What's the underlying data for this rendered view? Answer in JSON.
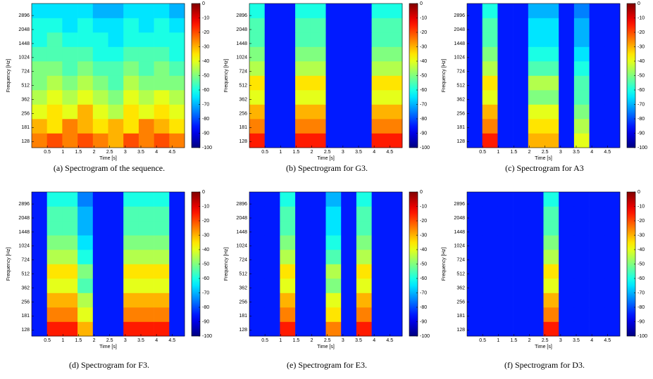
{
  "chart_data": [
    {
      "type": "heatmap",
      "caption": "(a) Spectrogram of the sequence.",
      "xlabel": "Time [s]",
      "ylabel": "Frequency [Hz]",
      "xlim": [
        0,
        4.9
      ],
      "xticks": [
        0.5,
        1,
        1.5,
        2,
        2.5,
        3,
        3.5,
        4,
        4.5
      ],
      "ylim": [
        110,
        3900
      ],
      "yscale": "log",
      "yticks": [
        128,
        181,
        256,
        362,
        512,
        724,
        1024,
        1448,
        2048,
        2896
      ],
      "clim": [
        -100,
        0
      ],
      "cticks": [
        0,
        -10,
        -20,
        -30,
        -40,
        -50,
        -60,
        -70,
        -80,
        -90,
        -100
      ],
      "colormap": "jet",
      "z": [
        [
          -25,
          -20,
          -25,
          -20,
          -25,
          -30,
          -20,
          -25,
          -20,
          -25
        ],
        [
          -30,
          -35,
          -25,
          -30,
          -35,
          -30,
          -35,
          -25,
          -30,
          -35
        ],
        [
          -40,
          -35,
          -40,
          -30,
          -40,
          -45,
          -35,
          -40,
          -35,
          -40
        ],
        [
          -45,
          -40,
          -45,
          -40,
          -45,
          -50,
          -40,
          -45,
          -40,
          -45
        ],
        [
          -50,
          -45,
          -50,
          -45,
          -50,
          -55,
          -45,
          -50,
          -50,
          -50
        ],
        [
          -50,
          -50,
          -55,
          -50,
          -55,
          -55,
          -50,
          -55,
          -50,
          -55
        ],
        [
          -55,
          -55,
          -55,
          -55,
          -60,
          -60,
          -55,
          -55,
          -55,
          -60
        ],
        [
          -60,
          -55,
          -60,
          -60,
          -60,
          -65,
          -60,
          -60,
          -60,
          -60
        ],
        [
          -60,
          -60,
          -65,
          -60,
          -65,
          -65,
          -60,
          -65,
          -60,
          -65
        ],
        [
          -65,
          -65,
          -65,
          -65,
          -70,
          -70,
          -65,
          -65,
          -65,
          -70
        ]
      ]
    },
    {
      "type": "heatmap",
      "caption": "(b) Spectrogram for G3.",
      "xlabel": "Time [s]",
      "ylabel": "Frequency [Hz]",
      "xlim": [
        0,
        4.9
      ],
      "xticks": [
        0.5,
        1,
        1.5,
        2,
        2.5,
        3,
        3.5,
        4,
        4.5
      ],
      "ylim": [
        110,
        3900
      ],
      "yscale": "log",
      "yticks": [
        128,
        181,
        256,
        362,
        512,
        724,
        1024,
        1448,
        2048,
        2896
      ],
      "clim": [
        -100,
        0
      ],
      "cticks": [
        0,
        -10,
        -20,
        -30,
        -40,
        -50,
        -60,
        -70,
        -80,
        -90,
        -100
      ],
      "colormap": "jet",
      "z": [
        [
          -15,
          -85,
          -85,
          -15,
          -15,
          -85,
          -85,
          -85,
          -15,
          -15
        ],
        [
          -25,
          -85,
          -85,
          -25,
          -25,
          -85,
          -85,
          -85,
          -25,
          -25
        ],
        [
          -30,
          -85,
          -85,
          -30,
          -30,
          -85,
          -85,
          -85,
          -30,
          -30
        ],
        [
          -40,
          -85,
          -85,
          -40,
          -40,
          -85,
          -85,
          -85,
          -40,
          -40
        ],
        [
          -35,
          -85,
          -85,
          -35,
          -35,
          -85,
          -85,
          -85,
          -35,
          -35
        ],
        [
          -45,
          -85,
          -85,
          -45,
          -45,
          -85,
          -85,
          -85,
          -45,
          -45
        ],
        [
          -50,
          -85,
          -85,
          -50,
          -50,
          -85,
          -85,
          -85,
          -50,
          -50
        ],
        [
          -55,
          -85,
          -85,
          -55,
          -55,
          -85,
          -85,
          -85,
          -55,
          -55
        ],
        [
          -55,
          -85,
          -85,
          -55,
          -55,
          -85,
          -85,
          -85,
          -55,
          -55
        ],
        [
          -60,
          -85,
          -85,
          -60,
          -60,
          -85,
          -85,
          -85,
          -60,
          -60
        ]
      ]
    },
    {
      "type": "heatmap",
      "caption": "(c) Spectrogram for A3",
      "xlabel": "Time [s]",
      "ylabel": "Frequency [Hz]",
      "xlim": [
        0,
        4.9
      ],
      "xticks": [
        0.5,
        1,
        1.5,
        2,
        2.5,
        3,
        3.5,
        4,
        4.5
      ],
      "ylim": [
        110,
        3900
      ],
      "yscale": "log",
      "yticks": [
        128,
        181,
        256,
        362,
        512,
        724,
        1024,
        1448,
        2048,
        2896
      ],
      "clim": [
        -100,
        0
      ],
      "cticks": [
        0,
        -10,
        -20,
        -30,
        -40,
        -50,
        -60,
        -70,
        -80,
        -90,
        -100
      ],
      "colormap": "jet",
      "z": [
        [
          -85,
          -15,
          -85,
          -85,
          -30,
          -30,
          -85,
          -40,
          -85,
          -85
        ],
        [
          -85,
          -25,
          -85,
          -85,
          -35,
          -35,
          -85,
          -45,
          -85,
          -85
        ],
        [
          -85,
          -30,
          -85,
          -85,
          -40,
          -40,
          -85,
          -50,
          -85,
          -85
        ],
        [
          -85,
          -40,
          -85,
          -85,
          -50,
          -50,
          -85,
          -55,
          -85,
          -85
        ],
        [
          -85,
          -35,
          -85,
          -85,
          -45,
          -45,
          -85,
          -55,
          -85,
          -85
        ],
        [
          -85,
          -45,
          -85,
          -85,
          -55,
          -55,
          -85,
          -60,
          -85,
          -85
        ],
        [
          -85,
          -50,
          -85,
          -85,
          -60,
          -60,
          -85,
          -65,
          -85,
          -85
        ],
        [
          -85,
          -55,
          -85,
          -85,
          -65,
          -65,
          -85,
          -70,
          -85,
          -85
        ],
        [
          -85,
          -55,
          -85,
          -85,
          -65,
          -65,
          -85,
          -70,
          -85,
          -85
        ],
        [
          -85,
          -60,
          -85,
          -85,
          -70,
          -70,
          -85,
          -75,
          -85,
          -85
        ]
      ]
    },
    {
      "type": "heatmap",
      "caption": "(d) Spectrogram for F3.",
      "xlabel": "Time [s]",
      "ylabel": "Frequency [Hz]",
      "xlim": [
        0,
        4.9
      ],
      "xticks": [
        0.5,
        1,
        1.5,
        2,
        2.5,
        3,
        3.5,
        4,
        4.5
      ],
      "ylim": [
        110,
        3900
      ],
      "yscale": "log",
      "yticks": [
        128,
        181,
        256,
        362,
        512,
        724,
        1024,
        1448,
        2048,
        2896
      ],
      "clim": [
        -100,
        0
      ],
      "cticks": [
        0,
        -10,
        -20,
        -30,
        -40,
        -50,
        -60,
        -70,
        -80,
        -90,
        -100
      ],
      "colormap": "jet",
      "z": [
        [
          -85,
          -15,
          -15,
          -30,
          -85,
          -85,
          -15,
          -15,
          -15,
          -85
        ],
        [
          -85,
          -25,
          -25,
          -40,
          -85,
          -85,
          -25,
          -25,
          -25,
          -85
        ],
        [
          -85,
          -30,
          -30,
          -45,
          -85,
          -85,
          -30,
          -30,
          -30,
          -85
        ],
        [
          -85,
          -40,
          -40,
          -55,
          -85,
          -85,
          -40,
          -40,
          -40,
          -85
        ],
        [
          -85,
          -35,
          -35,
          -50,
          -85,
          -85,
          -35,
          -35,
          -35,
          -85
        ],
        [
          -85,
          -45,
          -45,
          -60,
          -85,
          -85,
          -45,
          -45,
          -45,
          -85
        ],
        [
          -85,
          -50,
          -50,
          -65,
          -85,
          -85,
          -50,
          -50,
          -50,
          -85
        ],
        [
          -85,
          -55,
          -55,
          -70,
          -85,
          -85,
          -55,
          -55,
          -55,
          -85
        ],
        [
          -85,
          -55,
          -55,
          -70,
          -85,
          -85,
          -55,
          -55,
          -55,
          -85
        ],
        [
          -85,
          -60,
          -60,
          -75,
          -85,
          -85,
          -60,
          -60,
          -60,
          -85
        ]
      ]
    },
    {
      "type": "heatmap",
      "caption": "(e) Spectrogram for E3.",
      "xlabel": "Time [s]",
      "ylabel": "Frequency [Hz]",
      "xlim": [
        0,
        4.9
      ],
      "xticks": [
        0.5,
        1,
        1.5,
        2,
        2.5,
        3,
        3.5,
        4,
        4.5
      ],
      "ylim": [
        110,
        3900
      ],
      "yscale": "log",
      "yticks": [
        128,
        181,
        256,
        362,
        512,
        724,
        1024,
        1448,
        2048,
        2896
      ],
      "clim": [
        -100,
        0
      ],
      "cticks": [
        0,
        -10,
        -20,
        -30,
        -40,
        -50,
        -60,
        -70,
        -80,
        -90,
        -100
      ],
      "colormap": "jet",
      "z": [
        [
          -85,
          -85,
          -15,
          -85,
          -85,
          -25,
          -85,
          -15,
          -85,
          -85
        ],
        [
          -85,
          -85,
          -25,
          -85,
          -85,
          -35,
          -85,
          -25,
          -85,
          -85
        ],
        [
          -85,
          -85,
          -30,
          -85,
          -85,
          -40,
          -85,
          -30,
          -85,
          -85
        ],
        [
          -85,
          -85,
          -40,
          -85,
          -85,
          -50,
          -85,
          -40,
          -85,
          -85
        ],
        [
          -85,
          -85,
          -35,
          -85,
          -85,
          -45,
          -85,
          -35,
          -85,
          -85
        ],
        [
          -85,
          -85,
          -45,
          -85,
          -85,
          -55,
          -85,
          -45,
          -85,
          -85
        ],
        [
          -85,
          -85,
          -50,
          -85,
          -85,
          -60,
          -85,
          -50,
          -85,
          -85
        ],
        [
          -85,
          -85,
          -55,
          -85,
          -85,
          -65,
          -85,
          -55,
          -85,
          -85
        ],
        [
          -85,
          -85,
          -55,
          -85,
          -85,
          -65,
          -85,
          -55,
          -85,
          -85
        ],
        [
          -85,
          -85,
          -60,
          -85,
          -85,
          -70,
          -85,
          -60,
          -85,
          -85
        ]
      ]
    },
    {
      "type": "heatmap",
      "caption": "(f) Spectrogram for D3.",
      "xlabel": "Time [s]",
      "ylabel": "Frequency [Hz]",
      "xlim": [
        0,
        4.9
      ],
      "xticks": [
        0.5,
        1,
        1.5,
        2,
        2.5,
        3,
        3.5,
        4,
        4.5
      ],
      "ylim": [
        110,
        3900
      ],
      "yscale": "log",
      "yticks": [
        128,
        181,
        256,
        362,
        512,
        724,
        1024,
        1448,
        2048,
        2896
      ],
      "clim": [
        -100,
        0
      ],
      "cticks": [
        0,
        -10,
        -20,
        -30,
        -40,
        -50,
        -60,
        -70,
        -80,
        -90,
        -100
      ],
      "colormap": "jet",
      "z": [
        [
          -85,
          -85,
          -85,
          -85,
          -85,
          -15,
          -85,
          -85,
          -85,
          -85
        ],
        [
          -85,
          -85,
          -85,
          -85,
          -85,
          -25,
          -85,
          -85,
          -85,
          -85
        ],
        [
          -85,
          -85,
          -85,
          -85,
          -85,
          -30,
          -85,
          -85,
          -85,
          -85
        ],
        [
          -85,
          -85,
          -85,
          -85,
          -85,
          -40,
          -85,
          -85,
          -85,
          -85
        ],
        [
          -85,
          -85,
          -85,
          -85,
          -85,
          -35,
          -85,
          -85,
          -85,
          -85
        ],
        [
          -85,
          -85,
          -85,
          -85,
          -85,
          -45,
          -85,
          -85,
          -85,
          -85
        ],
        [
          -85,
          -85,
          -85,
          -85,
          -85,
          -50,
          -85,
          -85,
          -85,
          -85
        ],
        [
          -85,
          -85,
          -85,
          -85,
          -85,
          -55,
          -85,
          -85,
          -85,
          -85
        ],
        [
          -85,
          -85,
          -85,
          -85,
          -85,
          -55,
          -85,
          -85,
          -85,
          -85
        ],
        [
          -85,
          -85,
          -85,
          -85,
          -85,
          -60,
          -85,
          -85,
          -85,
          -85
        ]
      ]
    }
  ]
}
